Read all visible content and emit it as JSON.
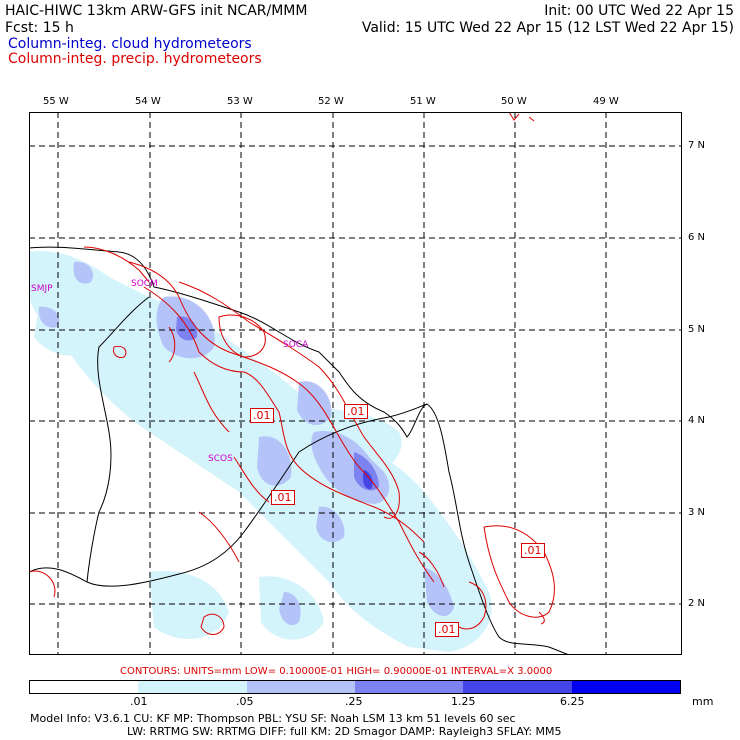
{
  "header": {
    "line1_left": "HAIC-HIWC 13km ARW-GFS init   NCAR/MMM",
    "line1_right": "Init: 00 UTC Wed 22 Apr 15",
    "line2_left": "Fcst:    15 h",
    "line2_right": "Valid: 15 UTC Wed 22 Apr 15 (12 LST Wed 22 Apr 15)",
    "legend_cloud": "Column-integ. cloud hydrometeors",
    "legend_precip": "Column-integ. precip. hydrometeors"
  },
  "map": {
    "longitude_labels": [
      "55 W",
      "54 W",
      "53 W",
      "52 W",
      "51 W",
      "50 W",
      "49 W"
    ],
    "latitude_labels": [
      "7 N",
      "6 N",
      "5 N",
      "4 N",
      "3 N",
      "2 N"
    ],
    "station_labels": [
      "SMJP",
      "SOCM",
      "SOCA",
      "SCOS"
    ],
    "contour_labels": [
      ".01",
      ".01",
      ".01",
      ".01",
      ".01"
    ]
  },
  "contours_text": "CONTOURS:  UNITS=mm  LOW= 0.10000E-01  HIGH= 0.90000E-01  INTERVAL=X  3.0000",
  "scale": {
    "ticks": [
      ".01",
      ".05",
      ".25",
      "1.25",
      "6.25"
    ],
    "unit": "mm",
    "colors": [
      "#ffffff",
      "#d4f4fc",
      "#b4c4f8",
      "#7c82f0",
      "#4444e8",
      "#0000ee"
    ]
  },
  "model_info": {
    "line1": "Model Info: V3.6.1    CU: KF      MP: Thompson     PBL: YSU       SF: Noah LSM     13 km   51 levels   60 sec",
    "line2": "LW: RRTMG    SW: RRTMG   DIFF: full    KM: 2D Smagor DAMP: Rayleigh3   SFLAY: MM5"
  }
}
